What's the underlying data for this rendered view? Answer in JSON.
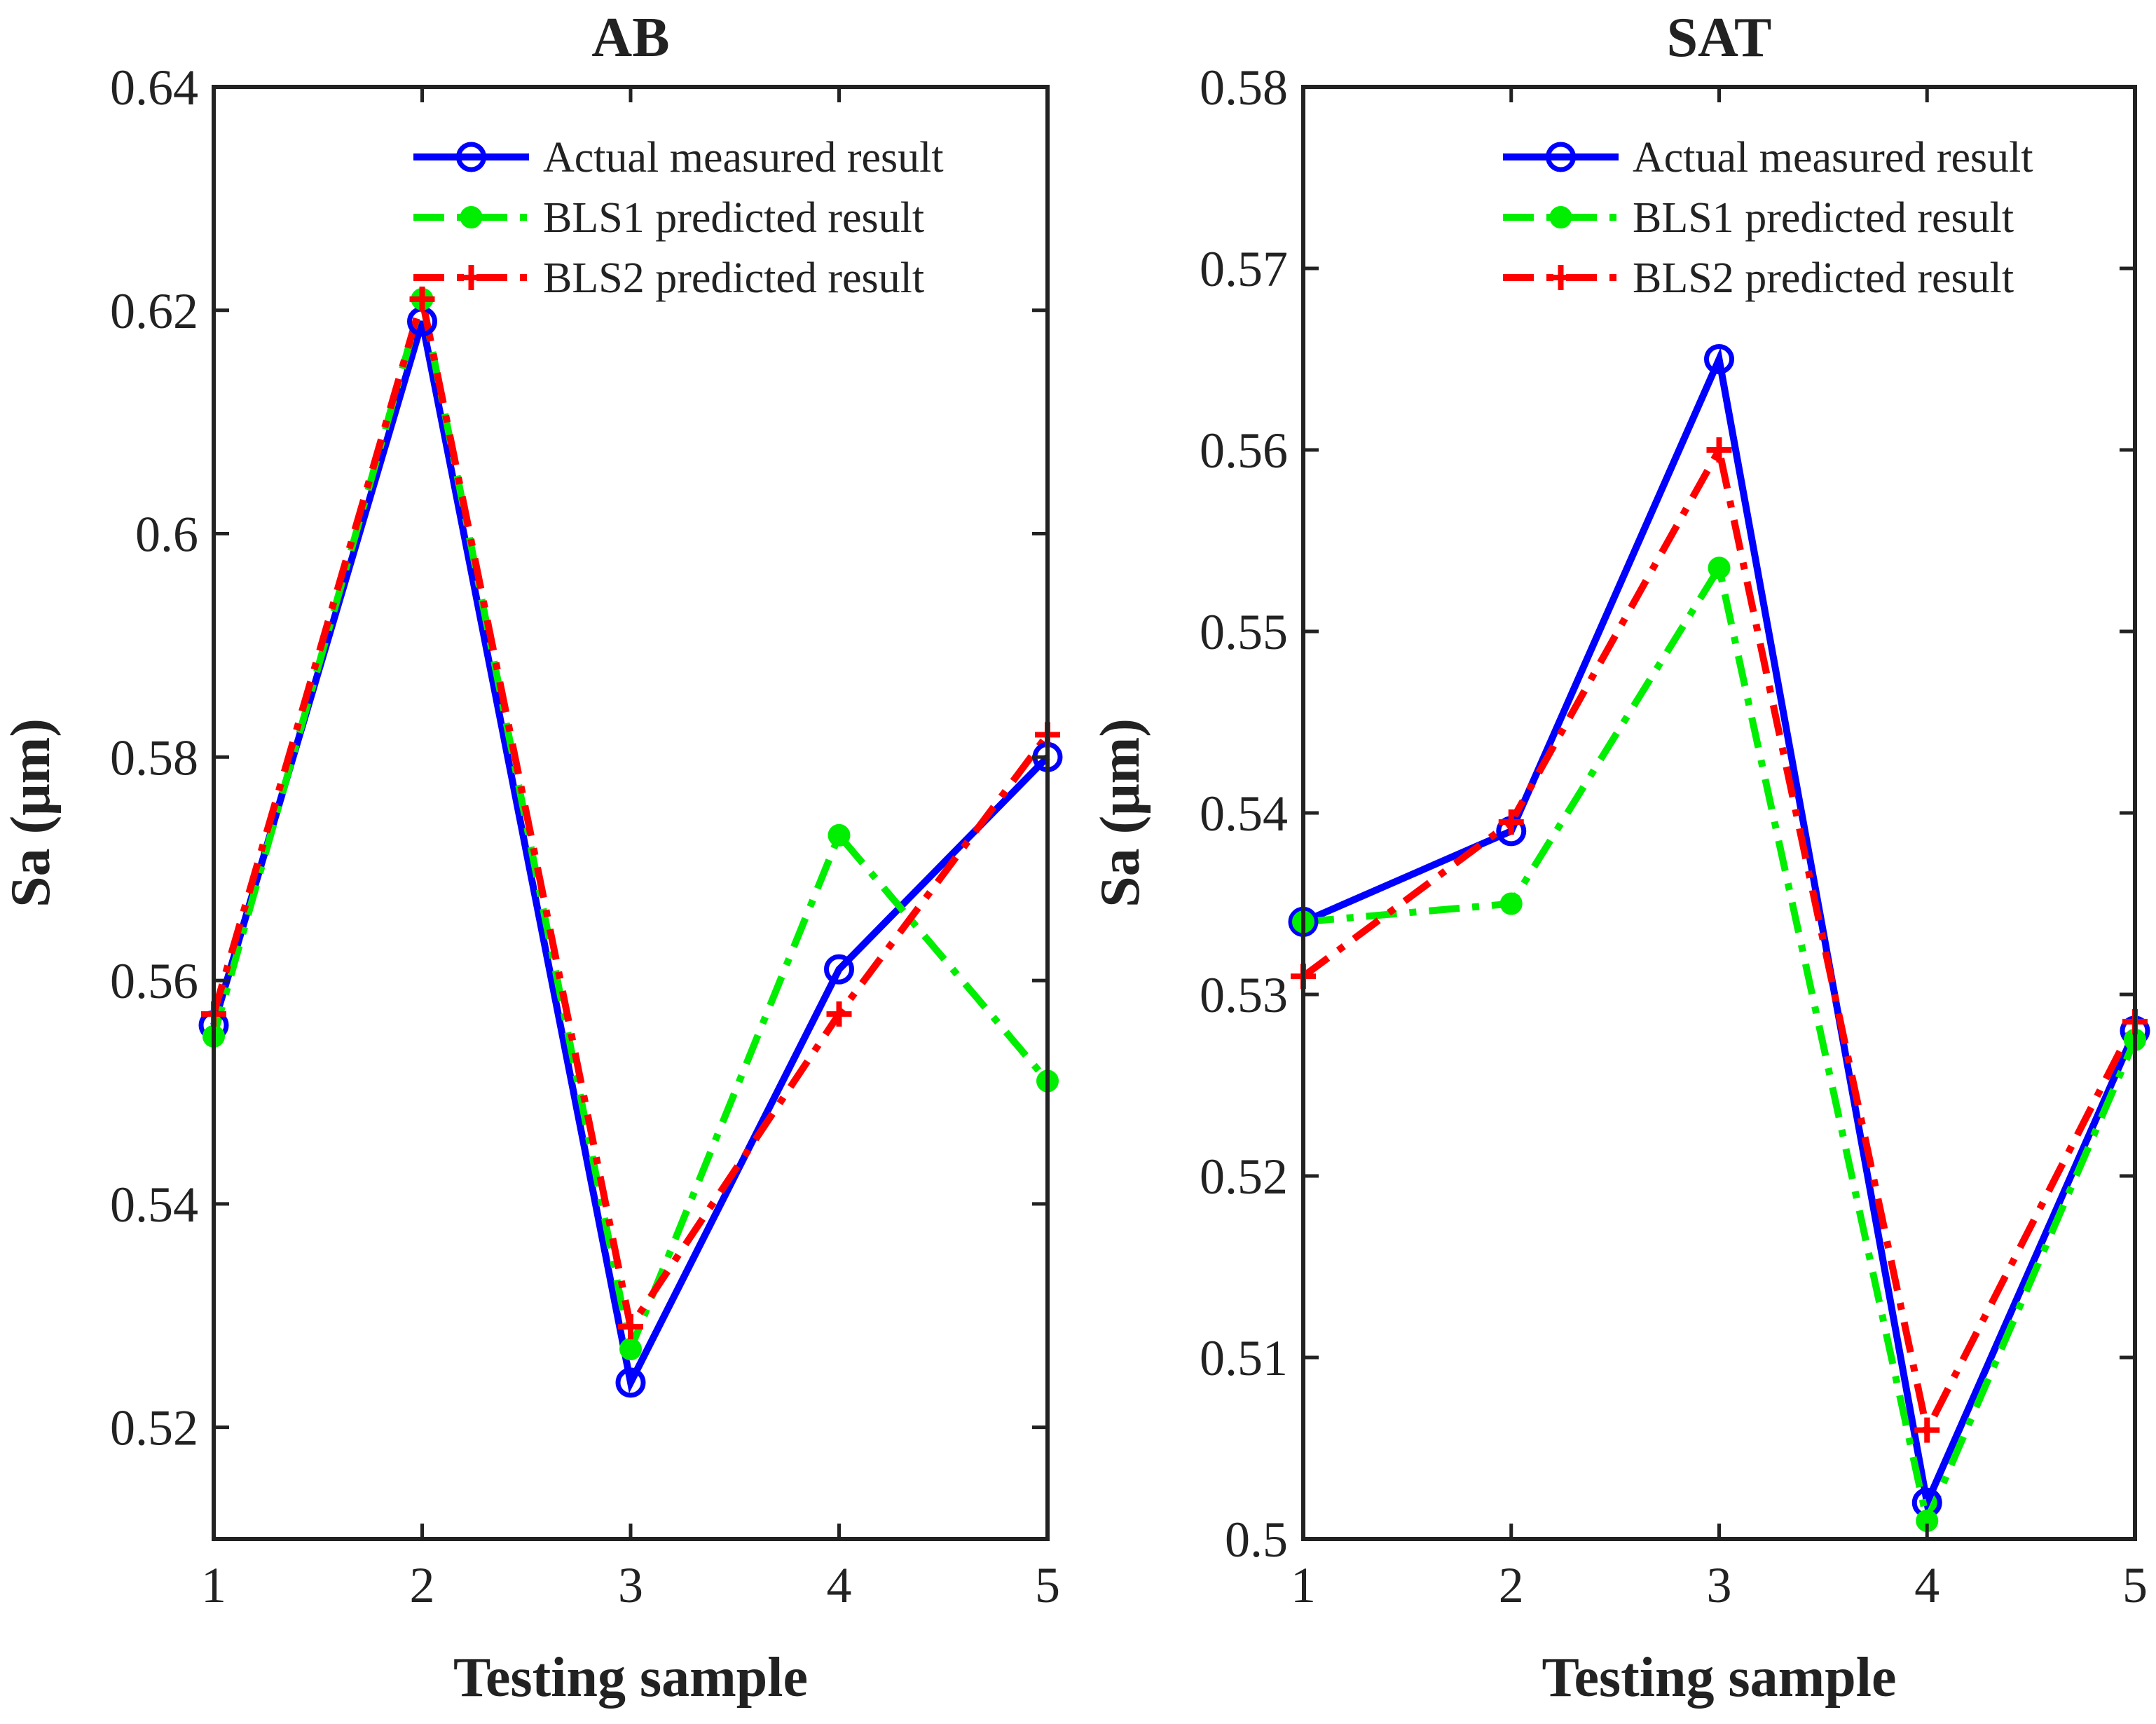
{
  "chart_data": [
    {
      "type": "line",
      "title": "AB",
      "xlabel": "Testing sample",
      "ylabel": "Sa (μm)",
      "x": [
        1,
        2,
        3,
        4,
        5
      ],
      "xticks": [
        "1",
        "2",
        "3",
        "4",
        "5"
      ],
      "ylim": [
        0.51,
        0.64
      ],
      "yticks": [
        "0.52",
        "0.54",
        "0.56",
        "0.58",
        "0.6",
        "0.62",
        "0.64"
      ],
      "legend_position": "top-right",
      "series": [
        {
          "name": "Actual measured result",
          "values": [
            0.556,
            0.619,
            0.524,
            0.561,
            0.58
          ],
          "color": "#0000ff",
          "style": "solid",
          "marker": "circle"
        },
        {
          "name": "BLS1 predicted result",
          "values": [
            0.555,
            0.621,
            0.527,
            0.573,
            0.551
          ],
          "color": "#00ee00",
          "style": "dashdot",
          "marker": "dot"
        },
        {
          "name": "BLS2 predicted result",
          "values": [
            0.557,
            0.621,
            0.529,
            0.557,
            0.582
          ],
          "color": "#ff0000",
          "style": "dashdot",
          "marker": "plus"
        }
      ]
    },
    {
      "type": "line",
      "title": "SAT",
      "xlabel": "Testing sample",
      "ylabel": "Sa (μm)",
      "x": [
        1,
        2,
        3,
        4,
        5
      ],
      "xticks": [
        "1",
        "2",
        "3",
        "4",
        "5"
      ],
      "ylim": [
        0.5,
        0.58
      ],
      "yticks": [
        "0.5",
        "0.51",
        "0.52",
        "0.53",
        "0.54",
        "0.55",
        "0.56",
        "0.57",
        "0.58"
      ],
      "legend_position": "top-right",
      "series": [
        {
          "name": "Actual measured result",
          "values": [
            0.534,
            0.539,
            0.565,
            0.502,
            0.528
          ],
          "color": "#0000ff",
          "style": "solid",
          "marker": "circle"
        },
        {
          "name": "BLS1 predicted result",
          "values": [
            0.534,
            0.535,
            0.5535,
            0.501,
            0.5275
          ],
          "color": "#00ee00",
          "style": "dashdot",
          "marker": "dot"
        },
        {
          "name": "BLS2 predicted result",
          "values": [
            0.531,
            0.5395,
            0.56,
            0.506,
            0.5285
          ],
          "color": "#ff0000",
          "style": "dashdot",
          "marker": "plus"
        }
      ]
    }
  ]
}
